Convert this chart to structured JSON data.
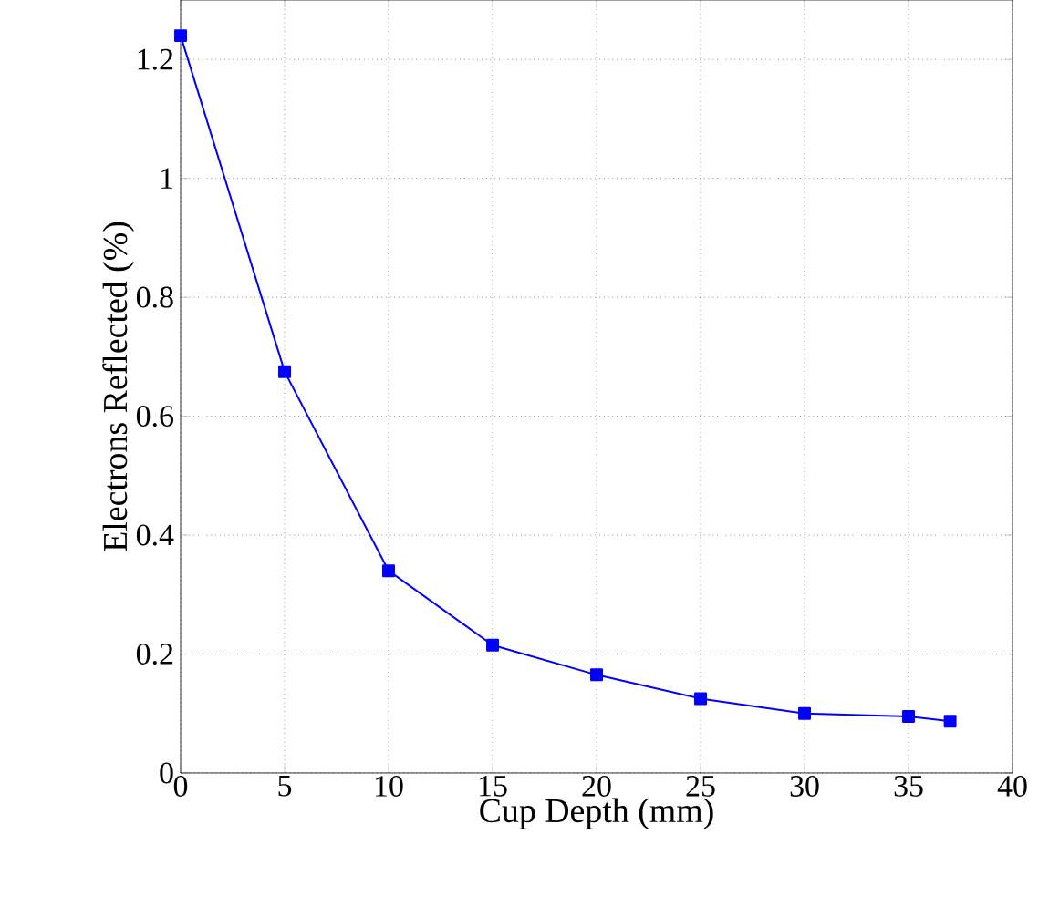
{
  "chart_data": {
    "type": "line",
    "xlabel": "Cup Depth (mm)",
    "ylabel": "Electrons Reflected (%)",
    "x": [
      0,
      5,
      10,
      15,
      20,
      25,
      30,
      35,
      37
    ],
    "series": [
      {
        "color": "#0000ff",
        "values": [
          1.24,
          0.675,
          0.34,
          0.215,
          0.165,
          0.125,
          0.1,
          0.095,
          0.087
        ]
      }
    ],
    "xlim": [
      0,
      40
    ],
    "ylim": [
      0,
      1.3
    ],
    "xticks": [
      0,
      5,
      10,
      15,
      20,
      25,
      30,
      35,
      40
    ],
    "yticks": [
      0,
      0.2,
      0.4,
      0.6,
      0.8,
      1,
      1.2
    ],
    "grid": true,
    "marker": "square",
    "line_style": "solid"
  }
}
